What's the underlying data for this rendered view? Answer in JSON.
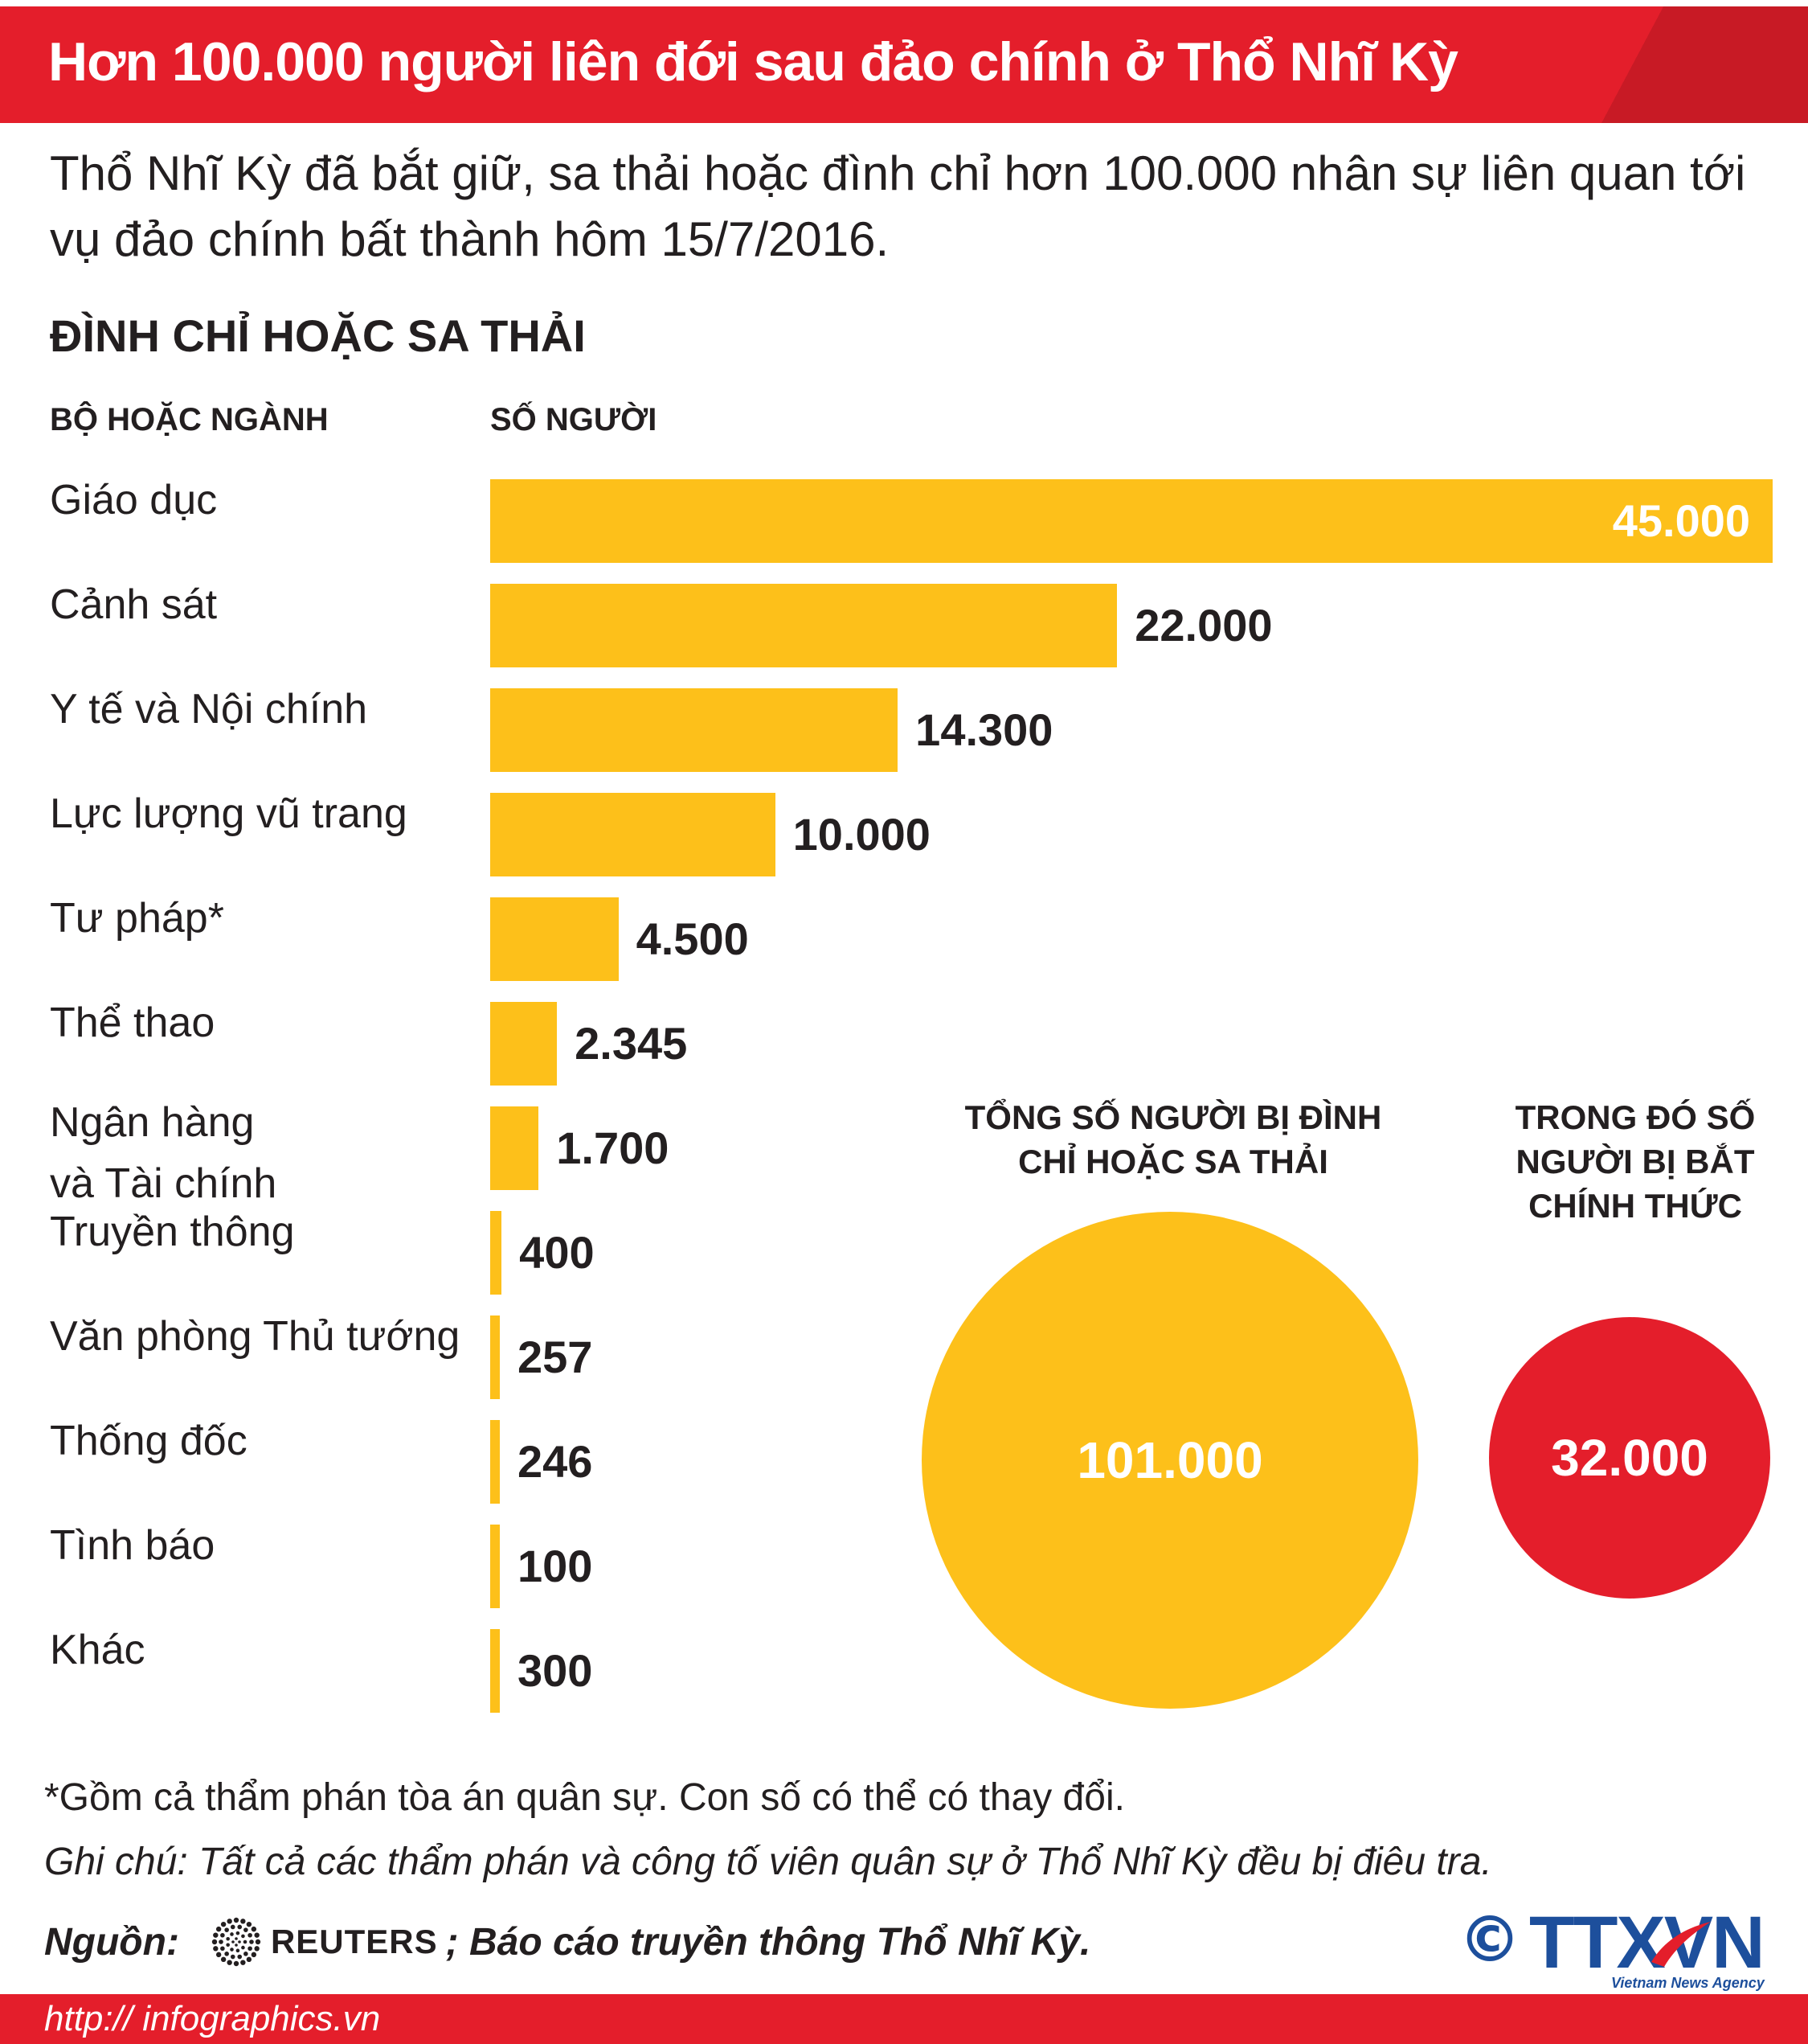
{
  "header": {
    "title": "Hơn 100.000 người liên đới sau đảo chính ở Thổ Nhĩ Kỳ"
  },
  "subtitle": "Thổ Nhĩ Kỳ đã bắt giữ, sa thải hoặc đình chỉ hơn 100.000 nhân sự liên quan tới vụ đảo chính bất thành hôm 15/7/2016.",
  "section": {
    "title": "ĐÌNH CHỈ HOẶC SA THẢI",
    "col_category": "BỘ HOẶC NGÀNH",
    "col_count": "SỐ NGƯỜI"
  },
  "chart_data": {
    "type": "bar",
    "orientation": "horizontal",
    "title": "ĐÌNH CHỈ HOẶC SA THẢI",
    "xlabel": "SỐ NGƯỜI",
    "ylabel": "BỘ HOẶC NGÀNH",
    "categories": [
      "Giáo dục",
      "Cảnh sát",
      "Y tế và Nội chính",
      "Lực lượng vũ trang",
      "Tư pháp*",
      "Thể thao",
      "Ngân hàng và Tài chính",
      "Truyền thông",
      "Văn phòng Thủ tướng",
      "Thống đốc",
      "Tình báo",
      "Khác"
    ],
    "values": [
      45000,
      22000,
      14300,
      10000,
      4500,
      2345,
      1700,
      400,
      257,
      246,
      100,
      300
    ],
    "value_labels": [
      "45.000",
      "22.000",
      "14.300",
      "10.000",
      "4.500",
      "2.345",
      "1.700",
      "400",
      "257",
      "246",
      "100",
      "300"
    ],
    "xlim": [
      0,
      45000
    ],
    "bar_color": "#fdc01a",
    "grid": false
  },
  "totals": {
    "total_heading": "TỔNG SỐ NGƯỜI BỊ ĐÌNH CHỈ HOẶC SA THẢI",
    "total_value": "101.000",
    "total_color": "#fdc01a",
    "arrested_heading": "TRONG ĐÓ SỐ NGƯỜI BỊ BẮT CHÍNH THỨC",
    "arrested_value": "32.000",
    "arrested_color": "#e41e2b"
  },
  "notes": {
    "footnote": "*Gồm cả thẩm phán tòa án quân sự. Con số có thể có thay đổi.",
    "remark": "Ghi chú: Tất cả các thẩm phán và công tố viên quân sự ở Thổ Nhĩ Kỳ đều bị điêu tra.",
    "source_label": "Nguồn:",
    "source_reuters": "REUTERS",
    "source_rest": "; Báo cáo truyền thông Thổ Nhĩ Kỳ."
  },
  "logo": {
    "copyright": "©",
    "name": "TTXVN",
    "tagline": "Vietnam News Agency"
  },
  "footer": {
    "url": "http:// infographics.vn"
  },
  "colors": {
    "brand_red": "#e41e2b",
    "bar_yellow": "#fdc01a",
    "logo_blue": "#1d4f9c"
  }
}
